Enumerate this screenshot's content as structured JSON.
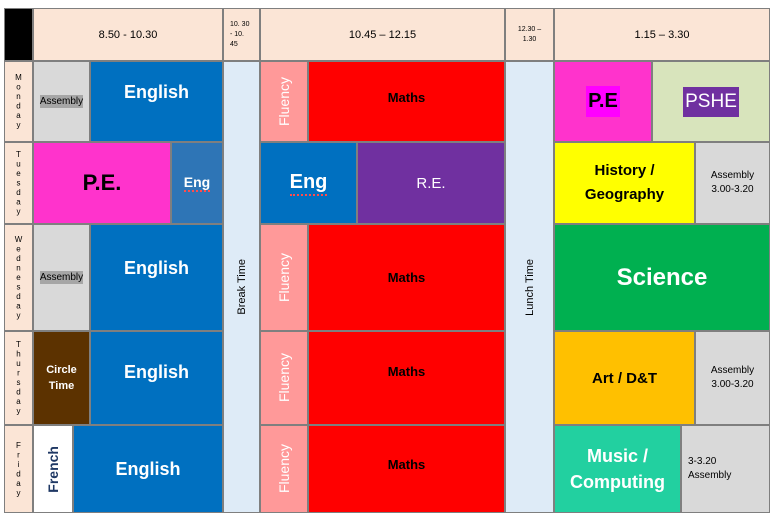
{
  "header": {
    "slot1": "8.50 - 10.30",
    "break_slot": "10. 30 - 10. 45",
    "slot2": "10.45 – 12.15",
    "lunch_slot": "12.30 – 1.30",
    "slot3": "1.15 – 3.30"
  },
  "days": [
    "Monday",
    "Tuesday",
    "Wednesday",
    "Thursday",
    "Friday"
  ],
  "break_label": "Break Time",
  "lunch_label": "Lunch Time",
  "monday": {
    "assembly": "Assembly",
    "english": "English",
    "fluency": "Fluency",
    "maths": "Maths",
    "pe": "P.E",
    "pshe": "PSHE"
  },
  "tuesday": {
    "pe": "P.E.",
    "eng_small": "Eng",
    "eng": "Eng",
    "re": "R.E.",
    "history": "History / Geography",
    "assembly": "Assembly 3.00-3.20"
  },
  "wednesday": {
    "assembly": "Assembly",
    "english": "English",
    "fluency": "Fluency",
    "maths": "Maths",
    "science": "Science"
  },
  "thursday": {
    "circle_time": "Circle Time",
    "english": "English",
    "fluency": "Fluency",
    "maths": "Maths",
    "art": "Art / D&T",
    "assembly": "Assembly 3.00-3.20"
  },
  "friday": {
    "french": "French",
    "english": "English",
    "fluency": "Fluency",
    "maths": "Maths",
    "music": "Music / Computing",
    "assembly": "3-3.20 Assembly"
  },
  "colors": {
    "header": "#fbe5d6",
    "english": "#0070c0",
    "maths": "#ff0000",
    "fluency": "#ff9999",
    "pe": "#ff33cc",
    "pshe": "#d8e4bc",
    "re": "#7030a0",
    "history": "#ffff00",
    "assembly": "#d9d9d9",
    "science": "#00b050",
    "circle_time": "#5c3200",
    "art": "#ffc000",
    "music": "#22d0a0",
    "break": "#deebf7"
  }
}
